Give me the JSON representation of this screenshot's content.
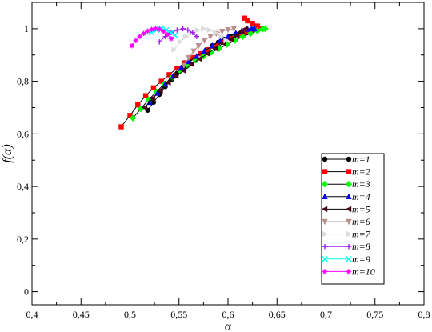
{
  "chart_data": {
    "type": "line",
    "xlabel": "α",
    "ylabel": "f(α)",
    "xlim": [
      0.4,
      0.8
    ],
    "ylim": [
      -0.05,
      1.1
    ],
    "x_ticks": [
      "0,4",
      "0,45",
      "0,5",
      "0,55",
      "0,6",
      "0,65",
      "0,7",
      "0,75",
      "0,8"
    ],
    "y_ticks": [
      "0",
      "0,2",
      "0,4",
      "0,6",
      "0,8",
      "1"
    ],
    "grid": false,
    "legend_position": "bottom-right",
    "series": [
      {
        "name": "m=1",
        "color": "#000000",
        "marker": "circle",
        "line_color": "#000000",
        "x": [
          0.518,
          0.524,
          0.53,
          0.536,
          0.542,
          0.548,
          0.554,
          0.56,
          0.566,
          0.572,
          0.578,
          0.584,
          0.59,
          0.596,
          0.602,
          0.608,
          0.614,
          0.62,
          0.626,
          0.632
        ],
        "y": [
          0.69,
          0.72,
          0.75,
          0.78,
          0.805,
          0.83,
          0.85,
          0.87,
          0.89,
          0.905,
          0.92,
          0.935,
          0.948,
          0.96,
          0.97,
          0.98,
          0.988,
          0.994,
          0.998,
          1.0
        ]
      },
      {
        "name": "m=2",
        "color": "#ff0000",
        "marker": "square",
        "line_color": "#000000",
        "x": [
          0.491,
          0.5,
          0.508,
          0.516,
          0.524,
          0.532,
          0.54,
          0.548,
          0.556,
          0.564,
          0.572,
          0.58,
          0.588,
          0.596,
          0.604,
          0.612,
          0.618,
          0.624,
          0.63,
          0.634,
          0.63,
          0.625,
          0.62,
          0.617
        ],
        "y": [
          0.627,
          0.67,
          0.71,
          0.745,
          0.775,
          0.8,
          0.825,
          0.85,
          0.87,
          0.89,
          0.905,
          0.92,
          0.935,
          0.95,
          0.962,
          0.975,
          0.985,
          0.993,
          0.999,
          1.0,
          1.01,
          1.02,
          1.03,
          1.04
        ]
      },
      {
        "name": "m=3",
        "color": "#00ff00",
        "marker": "diamond",
        "line_color": "#000000",
        "x": [
          0.503,
          0.511,
          0.519,
          0.527,
          0.535,
          0.543,
          0.551,
          0.559,
          0.567,
          0.575,
          0.583,
          0.591,
          0.599,
          0.607,
          0.615,
          0.623,
          0.63,
          0.635,
          0.638
        ],
        "y": [
          0.66,
          0.695,
          0.73,
          0.76,
          0.79,
          0.815,
          0.84,
          0.86,
          0.88,
          0.895,
          0.91,
          0.925,
          0.94,
          0.955,
          0.97,
          0.982,
          0.992,
          0.998,
          1.0
        ]
      },
      {
        "name": "m=4",
        "color": "#0000ff",
        "marker": "triangle-up",
        "line_color": "#000000",
        "x": [
          0.52,
          0.528,
          0.536,
          0.544,
          0.552,
          0.56,
          0.568,
          0.576,
          0.584,
          0.592,
          0.6,
          0.608,
          0.614,
          0.62,
          0.624,
          0.627
        ],
        "y": [
          0.72,
          0.755,
          0.79,
          0.82,
          0.85,
          0.875,
          0.895,
          0.915,
          0.935,
          0.955,
          0.97,
          0.983,
          0.992,
          0.998,
          1.0,
          1.0
        ]
      },
      {
        "name": "m=5",
        "color": "#4d0019",
        "marker": "triangle-left",
        "line_color": "#000000",
        "x": [
          0.515,
          0.523,
          0.531,
          0.539,
          0.547,
          0.555,
          0.563,
          0.571,
          0.579,
          0.587,
          0.595,
          0.603,
          0.609,
          0.614,
          0.618
        ],
        "y": [
          0.7,
          0.735,
          0.765,
          0.795,
          0.82,
          0.84,
          0.865,
          0.885,
          0.905,
          0.925,
          0.945,
          0.96,
          0.975,
          0.99,
          1.0
        ]
      },
      {
        "name": "m=6",
        "color": "#bc8f8f",
        "marker": "triangle-down",
        "line_color": "#bc8f8f",
        "x": [
          0.555,
          0.56,
          0.565,
          0.57,
          0.576,
          0.582,
          0.588,
          0.594,
          0.6,
          0.606
        ],
        "y": [
          0.86,
          0.89,
          0.915,
          0.935,
          0.955,
          0.97,
          0.982,
          0.99,
          0.996,
          1.0
        ]
      },
      {
        "name": "m=7",
        "color": "#dcdcdc",
        "marker": "triangle-right",
        "line_color": "#dcdcdc",
        "x": [
          0.545,
          0.551,
          0.557,
          0.563,
          0.569,
          0.575,
          0.581,
          0.587,
          0.593,
          0.598
        ],
        "y": [
          0.92,
          0.95,
          0.97,
          0.985,
          0.995,
          1.0,
          0.995,
          0.985,
          0.97,
          0.955
        ]
      },
      {
        "name": "m=8",
        "color": "#a020f0",
        "marker": "plus",
        "line_color": "#a020f0",
        "x": [
          0.53,
          0.536,
          0.542,
          0.548,
          0.554,
          0.559,
          0.564,
          0.568
        ],
        "y": [
          0.95,
          0.97,
          0.985,
          0.995,
          1.0,
          0.995,
          0.985,
          0.97
        ]
      },
      {
        "name": "m=9",
        "color": "#00ffff",
        "marker": "x",
        "line_color": "#00ffff",
        "x": [
          0.522,
          0.527,
          0.532,
          0.537,
          0.542,
          0.546
        ],
        "y": [
          0.985,
          0.995,
          1.0,
          0.995,
          0.985,
          0.975
        ]
      },
      {
        "name": "m=10",
        "color": "#ff00ff",
        "marker": "star",
        "line_color": "#ff00ff",
        "x": [
          0.502,
          0.506,
          0.51,
          0.514,
          0.518,
          0.522,
          0.526,
          0.53,
          0.534,
          0.538,
          0.542
        ],
        "y": [
          0.935,
          0.955,
          0.97,
          0.982,
          0.991,
          0.997,
          1.0,
          0.998,
          0.99,
          0.978,
          0.962
        ]
      }
    ]
  }
}
